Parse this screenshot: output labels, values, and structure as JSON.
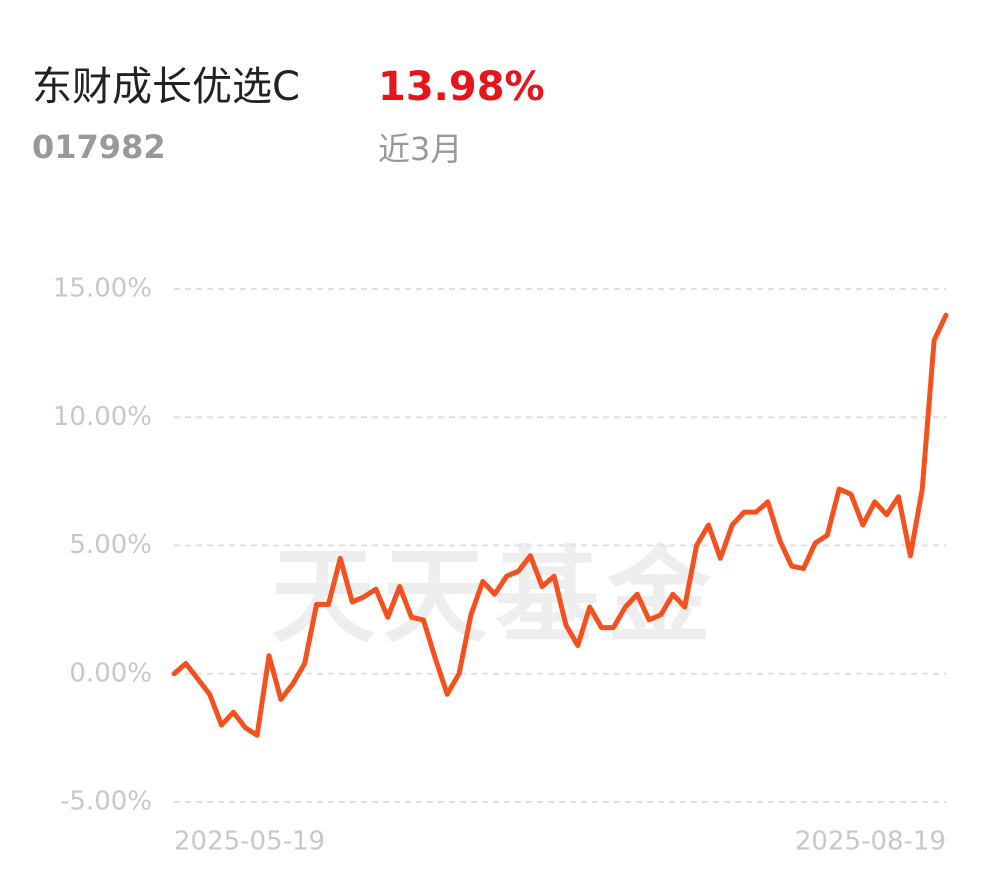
{
  "fund": {
    "name": "东财成长优选C",
    "code": "017982",
    "return": "13.98%",
    "period": "近3月"
  },
  "watermark": "天天基金",
  "chart_data": {
    "type": "line",
    "categories": [
      "2025-05-19",
      null,
      null,
      null,
      null,
      null,
      null,
      null,
      null,
      null,
      null,
      null,
      null,
      null,
      null,
      null,
      null,
      null,
      null,
      null,
      null,
      null,
      null,
      null,
      null,
      null,
      null,
      null,
      null,
      null,
      null,
      null,
      null,
      null,
      null,
      null,
      null,
      null,
      null,
      null,
      null,
      null,
      null,
      null,
      null,
      null,
      null,
      null,
      null,
      null,
      null,
      null,
      null,
      null,
      null,
      null,
      null,
      null,
      null,
      null,
      null,
      null,
      null,
      null,
      null,
      "2025-08-19"
    ],
    "series": [
      {
        "name": "东财成长优选C",
        "color": "#f4511e",
        "values": [
          0,
          0.4,
          -0.2,
          -0.8,
          -2.0,
          -1.5,
          -2.1,
          -2.4,
          0.7,
          -1.0,
          -0.4,
          0.4,
          2.7,
          2.7,
          4.5,
          2.8,
          3.0,
          3.3,
          2.2,
          3.4,
          2.2,
          2.1,
          0.6,
          -0.8,
          0.0,
          2.3,
          3.6,
          3.1,
          3.8,
          4.0,
          4.6,
          3.4,
          3.8,
          1.9,
          1.1,
          2.6,
          1.8,
          1.8,
          2.6,
          3.1,
          2.1,
          2.3,
          3.1,
          2.6,
          5.0,
          5.8,
          4.5,
          5.8,
          6.3,
          6.3,
          6.7,
          5.2,
          4.2,
          4.1,
          5.1,
          5.4,
          7.2,
          7.0,
          5.8,
          6.7,
          6.2,
          6.9,
          4.6,
          7.2,
          13.0,
          13.98
        ]
      }
    ],
    "ylim": [
      -5,
      15
    ],
    "yticks": [
      {
        "value": 15,
        "label": "15.00%"
      },
      {
        "value": 10,
        "label": "10.00%"
      },
      {
        "value": 5,
        "label": "5.00%"
      },
      {
        "value": 0,
        "label": "0.00%"
      },
      {
        "value": -5,
        "label": "-5.00%"
      }
    ],
    "grid": true
  }
}
